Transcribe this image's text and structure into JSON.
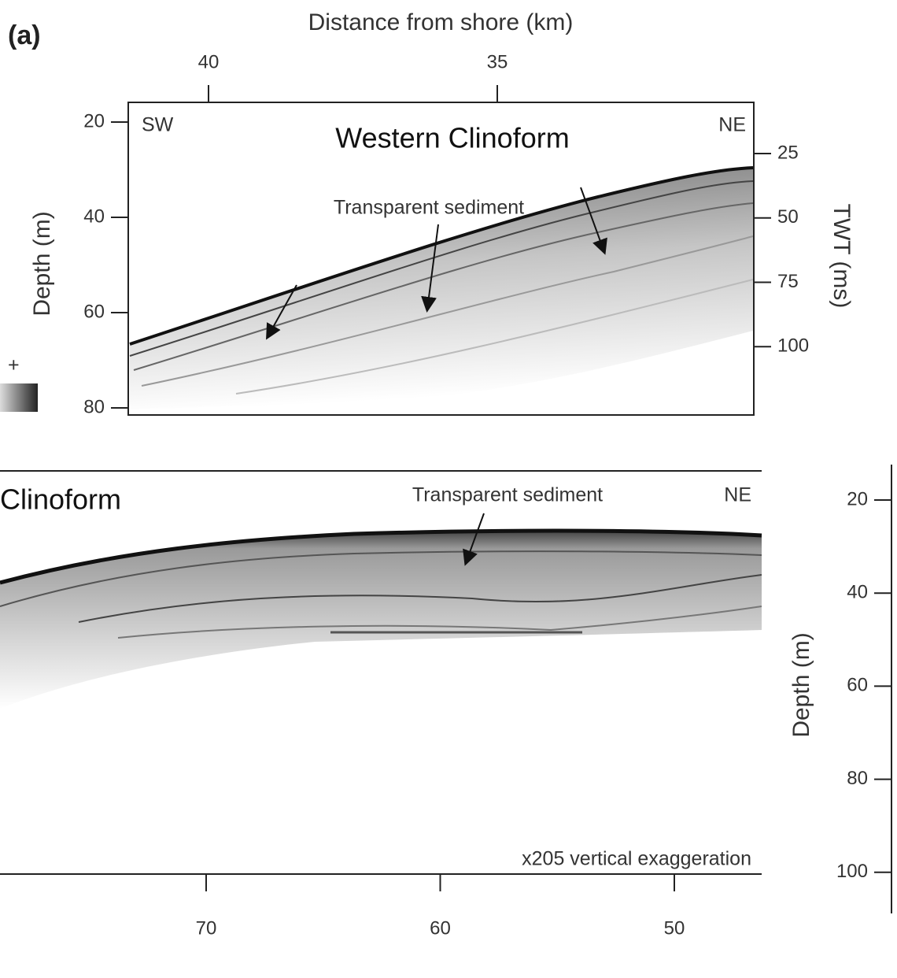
{
  "panel_a": {
    "label": "(a)",
    "x_axis_title": "Distance from shore (km)",
    "x_ticks": [
      40,
      35
    ],
    "y_axis_title": "Depth (m)",
    "y_ticks": [
      20,
      40,
      60,
      80
    ],
    "y2_axis_title": "TWT (ms)",
    "y2_ticks": [
      25,
      50,
      75,
      100
    ],
    "left_label": "SW",
    "right_label": "NE",
    "title": "Western Clinoform",
    "annotation": "Transparent sediment",
    "colorbar_label": "+"
  },
  "panel_b": {
    "title": "Clinoform",
    "annotation": "Transparent sediment",
    "right_label": "NE",
    "note": "x205 vertical exaggeration",
    "x_ticks": [
      70,
      60,
      50
    ],
    "y_axis_title": "Depth (m)",
    "y_ticks": [
      20,
      40,
      60,
      80,
      100
    ]
  }
}
